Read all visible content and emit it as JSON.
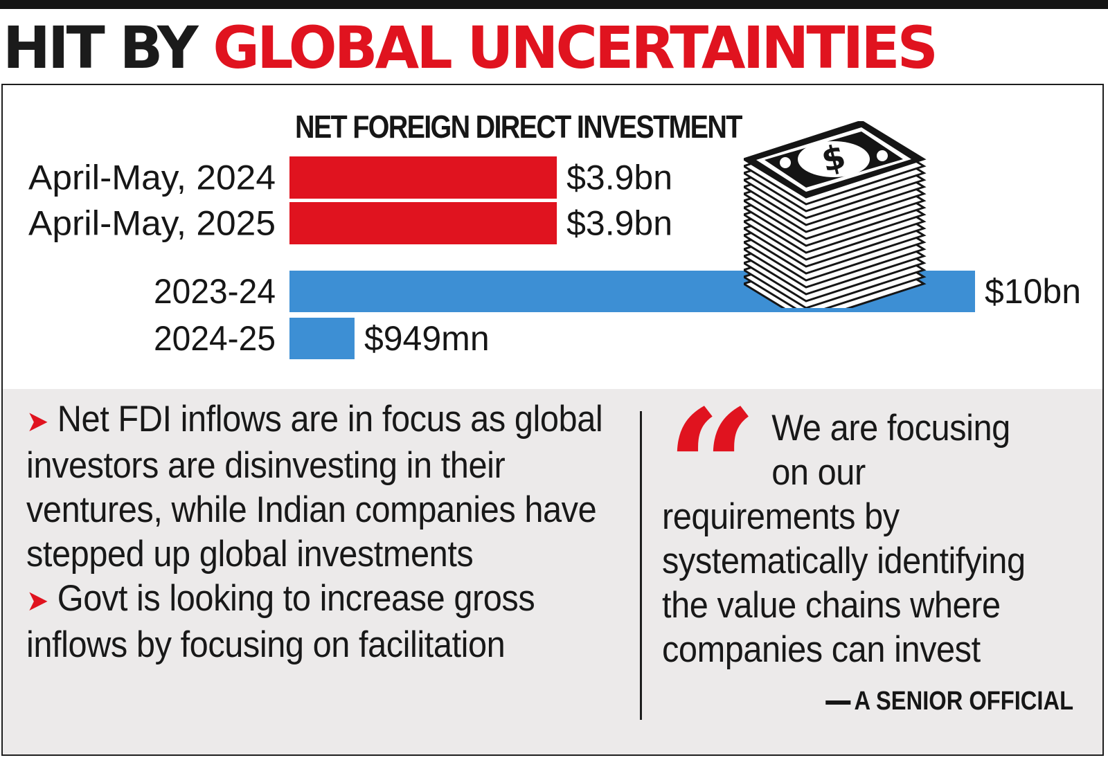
{
  "headline": {
    "part1": "HIT BY",
    "part2": "GLOBAL UNCERTAINTIES"
  },
  "colors": {
    "red": "#e0131f",
    "blue": "#3d8fd4",
    "text": "#161616",
    "note_bg": "#eceaea"
  },
  "chart_data": {
    "type": "bar",
    "orientation": "horizontal",
    "title": "NET FOREIGN DIRECT INVESTMENT",
    "unit": "US$ billion",
    "xlim": [
      0,
      10
    ],
    "bars": [
      {
        "category": "April-May, 2024",
        "value": 3.9,
        "label": "$3.9bn",
        "color": "#e0131f"
      },
      {
        "category": "April-May, 2025",
        "value": 3.9,
        "label": "$3.9bn",
        "color": "#e0131f"
      },
      {
        "category": "2023-24",
        "value": 10,
        "label": "$10bn",
        "color": "#3d8fd4"
      },
      {
        "category": "2024-25",
        "value": 0.949,
        "label": "$949mn",
        "color": "#3d8fd4"
      }
    ]
  },
  "notes": {
    "bullets": [
      "Net FDI inflows are in focus as global investors are disinvesting in their ventures, while Indian companies have stepped up global investments",
      "Govt is looking to increase gross inflows by focusing on facilitation"
    ],
    "quote_mark": "“",
    "quote_lines": [
      "We are focusing",
      "on our",
      "requirements by",
      "systematically identifying",
      "the value chains where",
      "companies can invest"
    ],
    "attribution": "A SENIOR OFFICIAL"
  },
  "icons": {
    "money": "money-stack-icon",
    "bullet": "red-arrow-icon"
  }
}
